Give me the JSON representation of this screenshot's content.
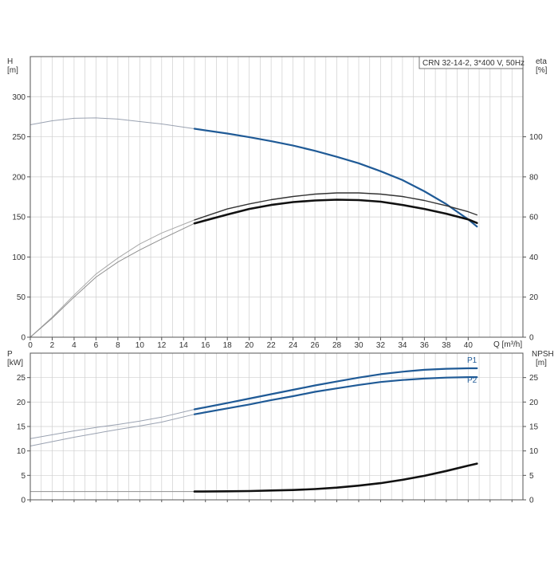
{
  "colors": {
    "blue_curve": "#1f5a96",
    "black_curve": "#111111",
    "grid": "#cfcfcf",
    "frame": "#555555",
    "ext": "#9aa2b1"
  },
  "chart_data": [
    {
      "type": "line",
      "title": "CRN 32-14-2, 3*400 V, 50Hz",
      "x": {
        "label": "Q [m³/h]",
        "min": 0,
        "max": 45,
        "ticks": [
          0,
          2,
          4,
          6,
          8,
          10,
          12,
          14,
          16,
          18,
          20,
          22,
          24,
          26,
          28,
          30,
          32,
          34,
          36,
          38,
          40
        ],
        "grid_step": 1
      },
      "y_left": {
        "label_line1": "H",
        "label_line2": "[m]",
        "min": 0,
        "max": 350,
        "ticks": [
          0,
          50,
          100,
          150,
          200,
          250,
          300
        ],
        "grid_step": 50
      },
      "y_right": {
        "label_line1": "eta",
        "label_line2": "[%]",
        "min": 0,
        "max": 140,
        "ticks": [
          0,
          20,
          40,
          60,
          80,
          100
        ]
      },
      "grid": true,
      "series": [
        {
          "id": "head",
          "axis": "left",
          "color": "blue",
          "points": [
            [
              0,
              265
            ],
            [
              2,
              270
            ],
            [
              4,
              273
            ],
            [
              6,
              273.5
            ],
            [
              8,
              272
            ],
            [
              10,
              269
            ],
            [
              12,
              266
            ],
            [
              15,
              260
            ],
            [
              18,
              254
            ],
            [
              20,
              249.5
            ],
            [
              22,
              244.5
            ],
            [
              24,
              239
            ],
            [
              26,
              232.5
            ],
            [
              28,
              225
            ],
            [
              30,
              217
            ],
            [
              32,
              207
            ],
            [
              34,
              196
            ],
            [
              36,
              182
            ],
            [
              38,
              166
            ],
            [
              40,
              147
            ],
            [
              40.8,
              138
            ]
          ],
          "operating_from_x": 15
        },
        {
          "id": "efficiency-motor-pump",
          "axis": "right",
          "color": "black_thin",
          "points": [
            [
              0,
              0
            ],
            [
              2,
              10
            ],
            [
              4,
              21
            ],
            [
              6,
              31.5
            ],
            [
              8,
              39.5
            ],
            [
              10,
              46.5
            ],
            [
              12,
              52
            ],
            [
              15,
              58.5
            ],
            [
              18,
              64
            ],
            [
              20,
              66.5
            ],
            [
              22,
              68.6
            ],
            [
              24,
              70.2
            ],
            [
              26,
              71.4
            ],
            [
              28,
              72
            ],
            [
              30,
              72
            ],
            [
              32,
              71.4
            ],
            [
              34,
              70.2
            ],
            [
              36,
              68.2
            ],
            [
              38,
              65.6
            ],
            [
              40,
              62.6
            ],
            [
              40.8,
              61
            ]
          ],
          "operating_from_x": 15
        },
        {
          "id": "efficiency-pump",
          "axis": "right",
          "color": "black_thick",
          "points": [
            [
              0,
              0
            ],
            [
              2,
              9.5
            ],
            [
              4,
              20
            ],
            [
              6,
              30
            ],
            [
              8,
              37.5
            ],
            [
              10,
              43.5
            ],
            [
              12,
              49
            ],
            [
              15,
              56.8
            ],
            [
              18,
              61.2
            ],
            [
              20,
              64
            ],
            [
              22,
              66
            ],
            [
              24,
              67.4
            ],
            [
              26,
              68.2
            ],
            [
              28,
              68.6
            ],
            [
              30,
              68.4
            ],
            [
              32,
              67.6
            ],
            [
              34,
              66
            ],
            [
              36,
              64
            ],
            [
              38,
              61.6
            ],
            [
              40,
              58.8
            ],
            [
              40.8,
              57
            ]
          ],
          "operating_from_x": 15
        }
      ]
    },
    {
      "type": "line",
      "x": {
        "min": 0,
        "max": 45,
        "grid_step": 1
      },
      "y_left": {
        "label_line1": "P",
        "label_line2": "[kW]",
        "min": 0,
        "max": 30,
        "ticks": [
          0,
          5,
          10,
          15,
          20,
          25
        ],
        "grid_step": 5
      },
      "y_right": {
        "label_line1": "NPSH",
        "label_line2": "[m]",
        "min": 0,
        "max": 30,
        "ticks": [
          0,
          5,
          10,
          15,
          20,
          25
        ]
      },
      "grid": true,
      "series": [
        {
          "id": "P1",
          "name": "P1",
          "axis": "left",
          "color": "blue",
          "points": [
            [
              0,
              12.5
            ],
            [
              2,
              13.3
            ],
            [
              4,
              14.1
            ],
            [
              6,
              14.8
            ],
            [
              8,
              15.4
            ],
            [
              10,
              16.1
            ],
            [
              12,
              16.9
            ],
            [
              15,
              18.5
            ],
            [
              18,
              19.8
            ],
            [
              20,
              20.7
            ],
            [
              22,
              21.6
            ],
            [
              24,
              22.5
            ],
            [
              26,
              23.4
            ],
            [
              28,
              24.2
            ],
            [
              30,
              25
            ],
            [
              32,
              25.7
            ],
            [
              34,
              26.2
            ],
            [
              36,
              26.6
            ],
            [
              38,
              26.8
            ],
            [
              40,
              26.9
            ],
            [
              40.8,
              26.9
            ]
          ],
          "operating_from_x": 15
        },
        {
          "id": "P2",
          "name": "P2",
          "axis": "left",
          "color": "blue",
          "points": [
            [
              0,
              11
            ],
            [
              2,
              11.9
            ],
            [
              4,
              12.8
            ],
            [
              6,
              13.6
            ],
            [
              8,
              14.4
            ],
            [
              10,
              15.1
            ],
            [
              12,
              15.9
            ],
            [
              15,
              17.5
            ],
            [
              18,
              18.7
            ],
            [
              20,
              19.5
            ],
            [
              22,
              20.4
            ],
            [
              24,
              21.2
            ],
            [
              26,
              22.1
            ],
            [
              28,
              22.8
            ],
            [
              30,
              23.5
            ],
            [
              32,
              24.1
            ],
            [
              34,
              24.5
            ],
            [
              36,
              24.8
            ],
            [
              38,
              25
            ],
            [
              40,
              25.1
            ],
            [
              40.8,
              25.1
            ]
          ],
          "operating_from_x": 15
        },
        {
          "id": "NPSH",
          "axis": "right",
          "color": "black_thick",
          "points": [
            [
              0,
              1.7
            ],
            [
              5,
              1.7
            ],
            [
              10,
              1.7
            ],
            [
              15,
              1.7
            ],
            [
              18,
              1.75
            ],
            [
              20,
              1.8
            ],
            [
              22,
              1.9
            ],
            [
              24,
              2
            ],
            [
              26,
              2.2
            ],
            [
              28,
              2.5
            ],
            [
              30,
              2.9
            ],
            [
              32,
              3.4
            ],
            [
              34,
              4.1
            ],
            [
              36,
              4.9
            ],
            [
              38,
              5.9
            ],
            [
              40,
              7
            ],
            [
              40.8,
              7.4
            ]
          ],
          "operating_from_x": 15
        }
      ]
    }
  ]
}
